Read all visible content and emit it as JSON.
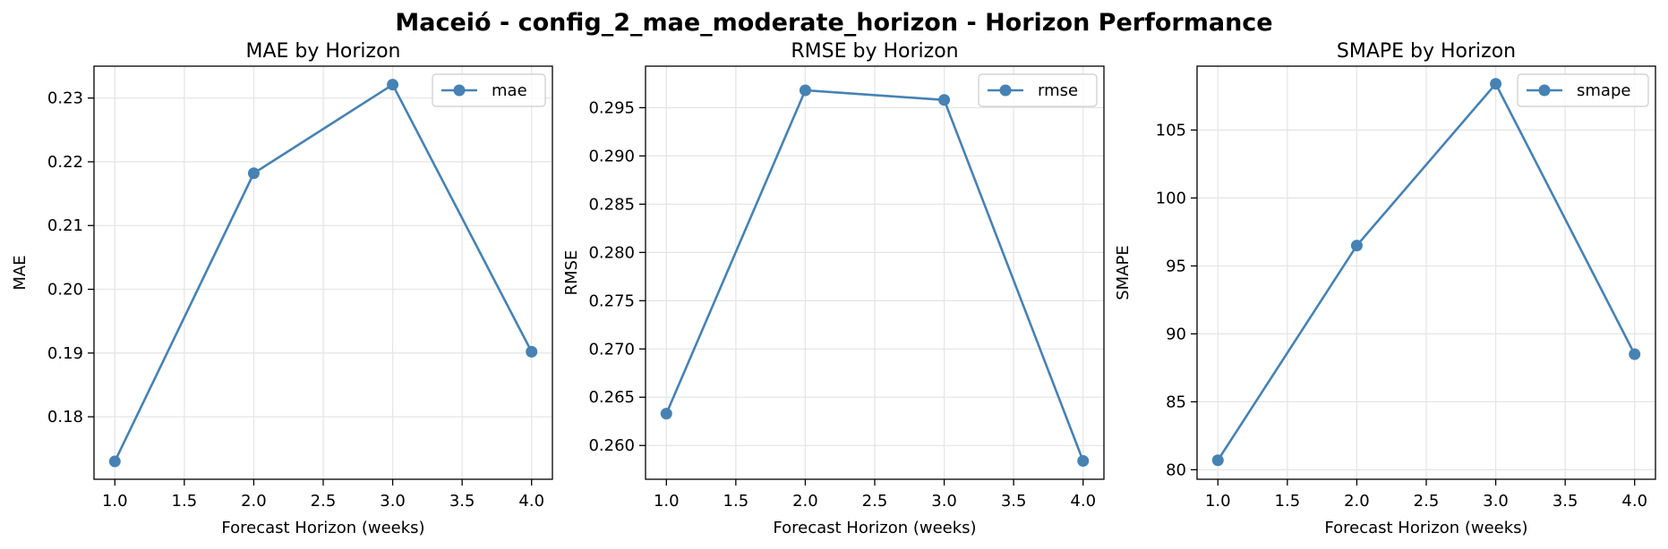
{
  "title": "Maceió - config_2_mae_moderate_horizon - Horizon Performance",
  "colors": {
    "line": "#4682b4",
    "grid": "#e6e6e6",
    "axis": "#000000"
  },
  "chart_data": [
    {
      "type": "line",
      "title": "MAE by Horizon",
      "xlabel": "Forecast Horizon (weeks)",
      "ylabel": "MAE",
      "legend": "top-right",
      "grid": true,
      "xlim": [
        0.85,
        4.15
      ],
      "ylim": [
        0.1702,
        0.235
      ],
      "xticks": [
        1.0,
        1.5,
        2.0,
        2.5,
        3.0,
        3.5,
        4.0
      ],
      "xtick_labels": [
        "1.0",
        "1.5",
        "2.0",
        "2.5",
        "3.0",
        "3.5",
        "4.0"
      ],
      "yticks": [
        0.18,
        0.19,
        0.2,
        0.21,
        0.22,
        0.23
      ],
      "ytick_labels": [
        "0.18",
        "0.19",
        "0.20",
        "0.21",
        "0.22",
        "0.23"
      ],
      "series": [
        {
          "name": "mae",
          "x": [
            1,
            2,
            3,
            4
          ],
          "y": [
            0.173,
            0.2182,
            0.2321,
            0.1902
          ]
        }
      ]
    },
    {
      "type": "line",
      "title": "RMSE by Horizon",
      "xlabel": "Forecast Horizon (weeks)",
      "ylabel": "RMSE",
      "legend": "top-right",
      "grid": true,
      "xlim": [
        0.85,
        4.15
      ],
      "ylim": [
        0.2565,
        0.2993
      ],
      "xticks": [
        1.0,
        1.5,
        2.0,
        2.5,
        3.0,
        3.5,
        4.0
      ],
      "xtick_labels": [
        "1.0",
        "1.5",
        "2.0",
        "2.5",
        "3.0",
        "3.5",
        "4.0"
      ],
      "yticks": [
        0.26,
        0.265,
        0.27,
        0.275,
        0.28,
        0.285,
        0.29,
        0.295
      ],
      "ytick_labels": [
        "0.260",
        "0.265",
        "0.270",
        "0.275",
        "0.280",
        "0.285",
        "0.290",
        "0.295"
      ],
      "series": [
        {
          "name": "rmse",
          "x": [
            1,
            2,
            3,
            4
          ],
          "y": [
            0.2633,
            0.2968,
            0.2958,
            0.2584
          ]
        }
      ]
    },
    {
      "type": "line",
      "title": "SMAPE by Horizon",
      "xlabel": "Forecast Horizon (weeks)",
      "ylabel": "SMAPE",
      "legend": "top-right",
      "grid": true,
      "xlim": [
        0.85,
        4.15
      ],
      "ylim": [
        79.3,
        109.7
      ],
      "xticks": [
        1.0,
        1.5,
        2.0,
        2.5,
        3.0,
        3.5,
        4.0
      ],
      "xtick_labels": [
        "1.0",
        "1.5",
        "2.0",
        "2.5",
        "3.0",
        "3.5",
        "4.0"
      ],
      "yticks": [
        80,
        85,
        90,
        95,
        100,
        105
      ],
      "ytick_labels": [
        "80",
        "85",
        "90",
        "95",
        "100",
        "105"
      ],
      "series": [
        {
          "name": "smape",
          "x": [
            1,
            2,
            3,
            4
          ],
          "y": [
            80.7,
            96.5,
            108.4,
            88.5
          ]
        }
      ]
    }
  ]
}
